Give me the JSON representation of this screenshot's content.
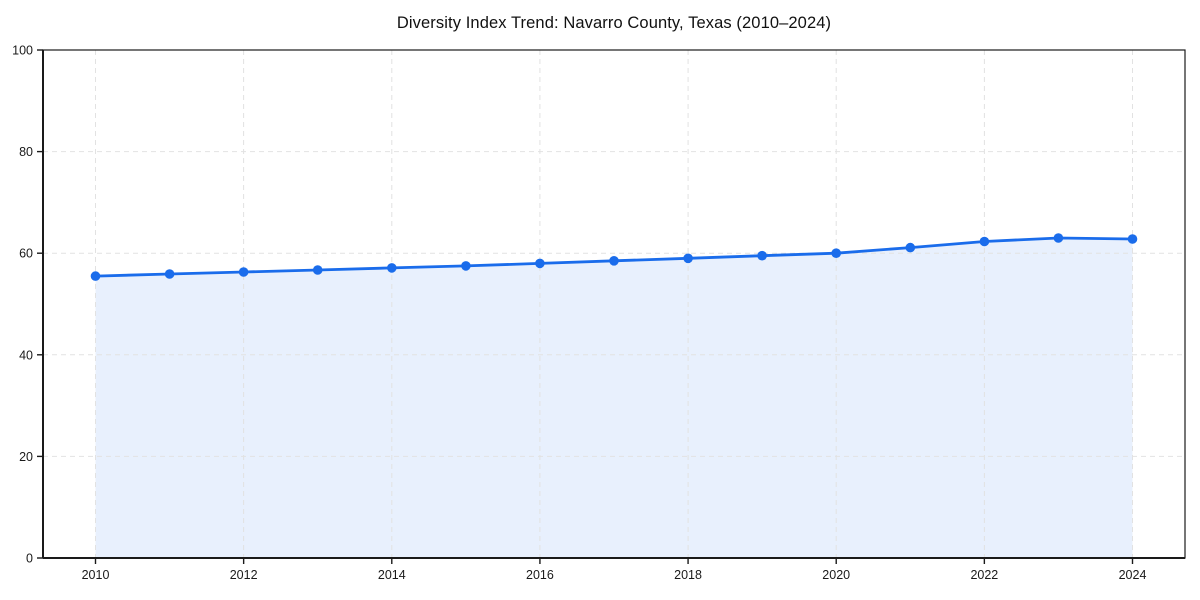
{
  "page": {
    "background_color": "#ffffff"
  },
  "chart_data": {
    "type": "line",
    "title": "Diversity Index Trend: Navarro County, Texas (2010–2024)",
    "x": [
      2010,
      2011,
      2012,
      2013,
      2014,
      2015,
      2016,
      2017,
      2018,
      2019,
      2020,
      2021,
      2022,
      2023,
      2024
    ],
    "series": [
      {
        "name": "Diversity Index",
        "values": [
          55.5,
          55.9,
          56.3,
          56.7,
          57.1,
          57.5,
          58.0,
          58.5,
          59.0,
          59.5,
          60.0,
          61.1,
          62.3,
          63.0,
          62.8
        ]
      }
    ],
    "xlabel": "",
    "ylabel": "",
    "ylim": [
      0,
      100
    ],
    "yticks": [
      0,
      20,
      40,
      60,
      80,
      100
    ],
    "xticks": [
      2010,
      2012,
      2014,
      2016,
      2018,
      2020,
      2022,
      2024
    ],
    "grid": true,
    "grid_style": "dashed",
    "legend_position": "none",
    "marker_shape": "circle",
    "colors": {
      "line": "#1a6ceb",
      "marker": "#1a6ceb",
      "area_fill": "#1a6ceb",
      "grid": "#e2e2e2",
      "axis": "#1a1a1a",
      "text": "#1a1a1a"
    },
    "area_fill_opacity": 0.1
  }
}
